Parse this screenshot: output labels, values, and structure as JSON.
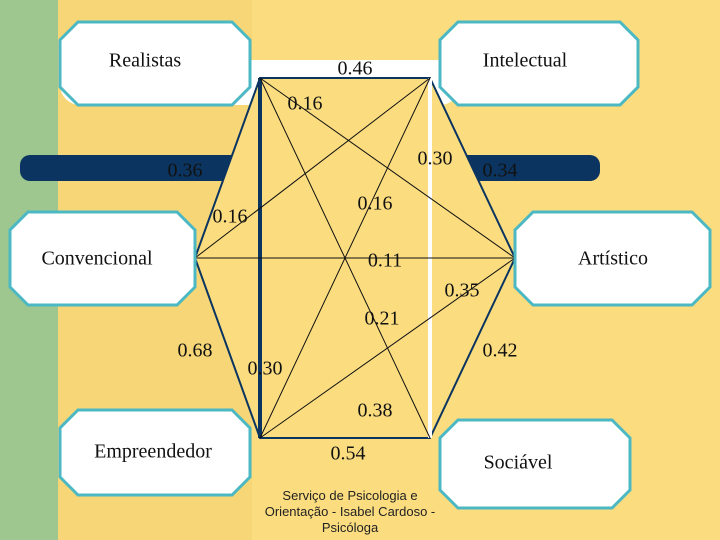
{
  "nodes": [
    {
      "label": "Realistas"
    },
    {
      "label": "Intelectual"
    },
    {
      "label": "Convencional"
    },
    {
      "label": "Artístico"
    },
    {
      "label": "Empreendedor"
    },
    {
      "label": "Sociável"
    }
  ],
  "correlations": [
    "0.46",
    "0.16",
    "0.36",
    "0.30",
    "0.34",
    "0.16",
    "0.16",
    "0.11",
    "0.35",
    "0.21",
    "0.68",
    "0.30",
    "0.42",
    "0.38",
    "0.54"
  ],
  "footer": "Serviço de Psicologia e Orientação - Isabel Cardoso - Psicóloga"
}
